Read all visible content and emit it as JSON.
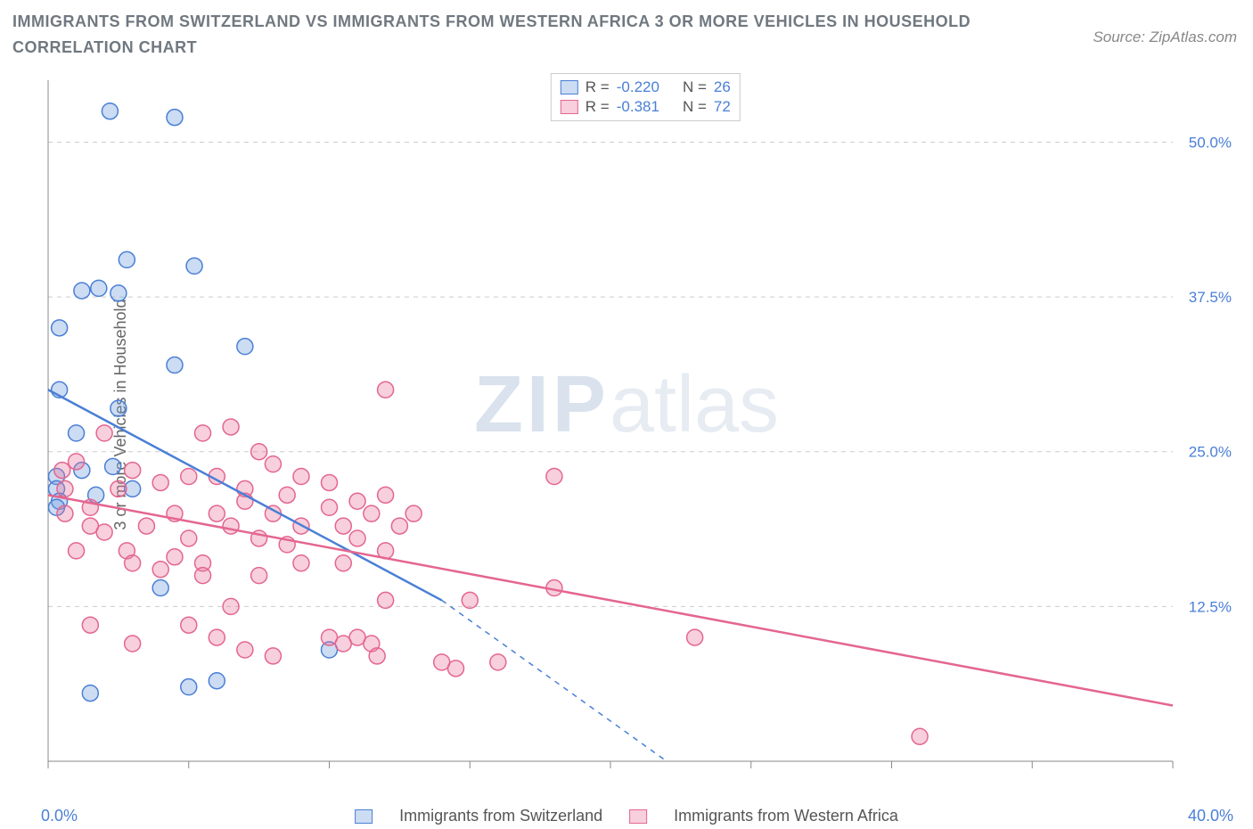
{
  "title": "IMMIGRANTS FROM SWITZERLAND VS IMMIGRANTS FROM WESTERN AFRICA 3 OR MORE VEHICLES IN HOUSEHOLD CORRELATION CHART",
  "source": "Source: ZipAtlas.com",
  "y_axis_label": "3 or more Vehicles in Household",
  "watermark_bold": "ZIP",
  "watermark_light": "atlas",
  "chart": {
    "type": "scatter",
    "background_color": "#ffffff",
    "grid_color": "#cccccc",
    "grid_dash": "5 5",
    "axis_color": "#888888",
    "xlim": [
      0,
      40
    ],
    "ylim": [
      0,
      55
    ],
    "x_ticks_minor": [
      0,
      5,
      10,
      15,
      20,
      25,
      30,
      35,
      40
    ],
    "y_ticks": [
      {
        "v": 12.5,
        "label": "12.5%"
      },
      {
        "v": 25.0,
        "label": "25.0%"
      },
      {
        "v": 37.5,
        "label": "37.5%"
      },
      {
        "v": 50.0,
        "label": "50.0%"
      }
    ],
    "x_origin_label": "0.0%",
    "x_max_label": "40.0%",
    "right_tick_color": "#4a7fd6",
    "right_tick_fontsize": 17,
    "marker_radius": 9,
    "marker_stroke_width": 1.5,
    "line_width": 2.5,
    "series": [
      {
        "id": "switzerland",
        "legend_label": "Immigrants from Switzerland",
        "color": "#4a7fd6",
        "fill": "rgba(108,155,222,0.35)",
        "R": "-0.220",
        "N": "26",
        "trend": {
          "x1": 0,
          "y1": 30,
          "x2": 14,
          "y2": 13,
          "dash_to_x": 22,
          "dash_to_y": 0
        },
        "points": [
          [
            2.2,
            52.5
          ],
          [
            4.5,
            52
          ],
          [
            0.4,
            35
          ],
          [
            1.2,
            38
          ],
          [
            1.8,
            38.2
          ],
          [
            2.5,
            37.8
          ],
          [
            2.8,
            40.5
          ],
          [
            5.2,
            40
          ],
          [
            4.5,
            32
          ],
          [
            7,
            33.5
          ],
          [
            0.4,
            30
          ],
          [
            1,
            26.5
          ],
          [
            0.3,
            23
          ],
          [
            0.3,
            22
          ],
          [
            0.4,
            21
          ],
          [
            1.2,
            23.5
          ],
          [
            1.7,
            21.5
          ],
          [
            2.3,
            23.8
          ],
          [
            0.3,
            20.5
          ],
          [
            4,
            14
          ],
          [
            5,
            6
          ],
          [
            6,
            6.5
          ],
          [
            10,
            9
          ],
          [
            1.5,
            5.5
          ],
          [
            2.5,
            28.5
          ],
          [
            3,
            22
          ]
        ]
      },
      {
        "id": "western_africa",
        "legend_label": "Immigrants from Western Africa",
        "color": "#e4668f",
        "fill": "rgba(232,118,159,0.35)",
        "R": "-0.381",
        "N": "72",
        "trend": {
          "x1": 0,
          "y1": 21.5,
          "x2": 40,
          "y2": 4.5,
          "dash_to_x": 40,
          "dash_to_y": 4.5
        },
        "points": [
          [
            12,
            30
          ],
          [
            18,
            23
          ],
          [
            0.5,
            23.5
          ],
          [
            0.6,
            22
          ],
          [
            0.6,
            20
          ],
          [
            1,
            24.2
          ],
          [
            1.5,
            20.5
          ],
          [
            1.5,
            19
          ],
          [
            2,
            18.5
          ],
          [
            2,
            26.5
          ],
          [
            2.5,
            22
          ],
          [
            2.8,
            17
          ],
          [
            3,
            23.5
          ],
          [
            3.5,
            19
          ],
          [
            4,
            22.5
          ],
          [
            4.5,
            20
          ],
          [
            4.5,
            16.5
          ],
          [
            5,
            18
          ],
          [
            5,
            23
          ],
          [
            5.5,
            16
          ],
          [
            5.5,
            26.5
          ],
          [
            6,
            23
          ],
          [
            6,
            20
          ],
          [
            6.5,
            19
          ],
          [
            6.5,
            27
          ],
          [
            7,
            22
          ],
          [
            7,
            21
          ],
          [
            7.5,
            25
          ],
          [
            7.5,
            18
          ],
          [
            8,
            24
          ],
          [
            8,
            20
          ],
          [
            8.5,
            21.5
          ],
          [
            8.5,
            17.5
          ],
          [
            9,
            23
          ],
          [
            9,
            19
          ],
          [
            9,
            16
          ],
          [
            10,
            20.5
          ],
          [
            10,
            22.5
          ],
          [
            10.5,
            16
          ],
          [
            10.5,
            19
          ],
          [
            11,
            21
          ],
          [
            11,
            18
          ],
          [
            11.5,
            20
          ],
          [
            12,
            21.5
          ],
          [
            12,
            17
          ],
          [
            12.5,
            19
          ],
          [
            13,
            20
          ],
          [
            1,
            17
          ],
          [
            1.5,
            11
          ],
          [
            3,
            16
          ],
          [
            3,
            9.5
          ],
          [
            4,
            15.5
          ],
          [
            5,
            11
          ],
          [
            5.5,
            15
          ],
          [
            6,
            10
          ],
          [
            6.5,
            12.5
          ],
          [
            7,
            9
          ],
          [
            7.5,
            15
          ],
          [
            8,
            8.5
          ],
          [
            10,
            10
          ],
          [
            10.5,
            9.5
          ],
          [
            11,
            10
          ],
          [
            11.5,
            9.5
          ],
          [
            11.7,
            8.5
          ],
          [
            12,
            13
          ],
          [
            14,
            8
          ],
          [
            15,
            13
          ],
          [
            16,
            8
          ],
          [
            18,
            14
          ],
          [
            23,
            10
          ],
          [
            31,
            2
          ],
          [
            14.5,
            7.5
          ]
        ]
      }
    ]
  },
  "legend_top": {
    "rows": [
      {
        "swatch": "swB",
        "r_label": "R =",
        "r_val": "-0.220",
        "n_label": "N =",
        "n_val": "26"
      },
      {
        "swatch": "swP",
        "r_label": "R =",
        "r_val": "-0.381",
        "n_label": "N =",
        "n_val": "72"
      }
    ]
  }
}
